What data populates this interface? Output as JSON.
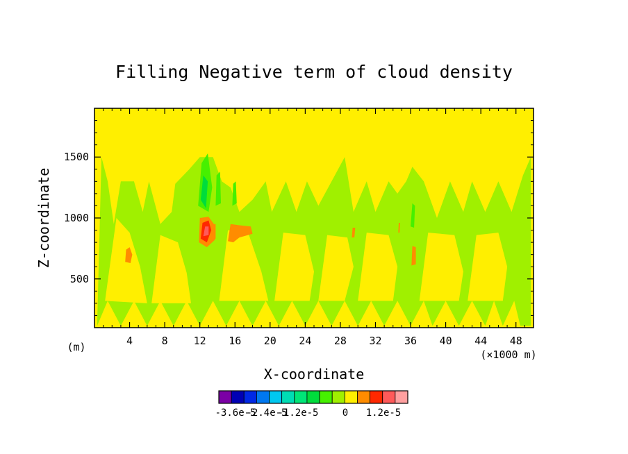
{
  "chart_data": {
    "type": "heatmap",
    "title": "Filling Negative term of cloud density",
    "xlabel": "X-coordinate",
    "ylabel": "Z-coordinate",
    "x_unit_left": "(m)",
    "x_unit_right": "(×1000 m)",
    "xlim": [
      0,
      50
    ],
    "ylim": [
      100,
      1900
    ],
    "x_ticks": [
      4,
      8,
      12,
      16,
      20,
      24,
      28,
      32,
      36,
      40,
      44,
      48
    ],
    "y_ticks": [
      500,
      1000,
      1500
    ],
    "background_color": "#ffef00",
    "colorbar": {
      "colors": [
        "#7b00a5",
        "#0000b4",
        "#0028e6",
        "#0078f0",
        "#00c8f0",
        "#00dcb4",
        "#00e678",
        "#00dc3c",
        "#46f000",
        "#a0f000",
        "#ffef00",
        "#ff8c00",
        "#ff2800",
        "#ff5a5a",
        "#ffa0a0"
      ],
      "labels": [
        "-3.6e-5",
        "-2.4e-5",
        "-1.2e-5",
        "0",
        "1.2e-5"
      ]
    },
    "regions": [
      {
        "level": "0 (light green)",
        "color": "#a0f000",
        "points": [
          [
            0.3,
            115
          ],
          [
            0.8,
            1500
          ],
          [
            1.5,
            1300
          ],
          [
            2.2,
            950
          ],
          [
            3,
            1300
          ],
          [
            4.5,
            1300
          ],
          [
            5.5,
            1050
          ],
          [
            6.2,
            1300
          ],
          [
            7.5,
            950
          ],
          [
            8.8,
            1050
          ],
          [
            9.2,
            1280
          ],
          [
            10.8,
            1400
          ],
          [
            12,
            1500
          ],
          [
            13.5,
            1500
          ],
          [
            14.5,
            1300
          ],
          [
            15.5,
            1250
          ],
          [
            16.5,
            1050
          ],
          [
            18,
            1150
          ],
          [
            19.5,
            1300
          ],
          [
            20.2,
            1050
          ],
          [
            21.8,
            1300
          ],
          [
            23,
            1050
          ],
          [
            24.2,
            1300
          ],
          [
            25.5,
            1100
          ],
          [
            27,
            1300
          ],
          [
            28.5,
            1500
          ],
          [
            29.5,
            1050
          ],
          [
            31,
            1300
          ],
          [
            32,
            1050
          ],
          [
            33.5,
            1300
          ],
          [
            34.5,
            1200
          ],
          [
            35.5,
            1300
          ],
          [
            36.2,
            1420
          ],
          [
            37.5,
            1300
          ],
          [
            39,
            1000
          ],
          [
            40.5,
            1300
          ],
          [
            42,
            1050
          ],
          [
            43,
            1300
          ],
          [
            44.5,
            1050
          ],
          [
            46,
            1300
          ],
          [
            47.5,
            1050
          ],
          [
            48.8,
            1350
          ],
          [
            49.7,
            1500
          ],
          [
            49.7,
            115
          ],
          [
            48.5,
            115
          ],
          [
            47.8,
            320
          ],
          [
            46.5,
            115
          ],
          [
            45.5,
            320
          ],
          [
            44.5,
            115
          ],
          [
            43,
            320
          ],
          [
            41.5,
            115
          ],
          [
            40,
            320
          ],
          [
            38.5,
            115
          ],
          [
            37.5,
            320
          ],
          [
            36,
            115
          ],
          [
            34.5,
            320
          ],
          [
            33,
            115
          ],
          [
            31.5,
            320
          ],
          [
            30,
            115
          ],
          [
            28.5,
            320
          ],
          [
            27,
            115
          ],
          [
            25.5,
            320
          ],
          [
            24,
            115
          ],
          [
            22.5,
            320
          ],
          [
            21,
            115
          ],
          [
            19.5,
            320
          ],
          [
            18,
            115
          ],
          [
            16.5,
            320
          ],
          [
            15,
            115
          ],
          [
            13.5,
            320
          ],
          [
            12,
            115
          ],
          [
            10.5,
            320
          ],
          [
            9,
            115
          ],
          [
            7.5,
            320
          ],
          [
            6,
            115
          ],
          [
            4.5,
            320
          ],
          [
            3,
            115
          ],
          [
            1.5,
            320
          ]
        ]
      },
      {
        "level": "0 (yellow)",
        "color": "#ffef00",
        "points": [
          [
            1.2,
            320
          ],
          [
            2.5,
            1000
          ],
          [
            4,
            880
          ],
          [
            5.2,
            600
          ],
          [
            6,
            300
          ]
        ]
      },
      {
        "level": "0 (yellow)",
        "color": "#ffef00",
        "points": [
          [
            6.5,
            300
          ],
          [
            7.5,
            860
          ],
          [
            9.5,
            800
          ],
          [
            10.5,
            550
          ],
          [
            11,
            300
          ]
        ]
      },
      {
        "level": "0 (yellow)",
        "color": "#ffef00",
        "points": [
          [
            14.2,
            320
          ],
          [
            15.2,
            900
          ],
          [
            17.5,
            880
          ],
          [
            19,
            560
          ],
          [
            19.8,
            320
          ]
        ]
      },
      {
        "level": "0 (yellow)",
        "color": "#ffef00",
        "points": [
          [
            20.5,
            320
          ],
          [
            21.5,
            880
          ],
          [
            24,
            860
          ],
          [
            25,
            560
          ],
          [
            24.5,
            320
          ]
        ]
      },
      {
        "level": "0 (yellow)",
        "color": "#ffef00",
        "points": [
          [
            25.5,
            320
          ],
          [
            26.5,
            860
          ],
          [
            28.8,
            840
          ],
          [
            29.5,
            600
          ],
          [
            28.5,
            320
          ]
        ]
      },
      {
        "level": "0 (yellow)",
        "color": "#ffef00",
        "points": [
          [
            30,
            320
          ],
          [
            31,
            880
          ],
          [
            33.5,
            860
          ],
          [
            34.5,
            600
          ],
          [
            34,
            320
          ]
        ]
      },
      {
        "level": "0 (yellow)",
        "color": "#ffef00",
        "points": [
          [
            37,
            320
          ],
          [
            38,
            880
          ],
          [
            41,
            860
          ],
          [
            42,
            560
          ],
          [
            41.5,
            320
          ]
        ]
      },
      {
        "level": "0 (yellow)",
        "color": "#ffef00",
        "points": [
          [
            42.5,
            320
          ],
          [
            43.5,
            860
          ],
          [
            46,
            880
          ],
          [
            47,
            600
          ],
          [
            46.5,
            320
          ]
        ]
      },
      {
        "level": "-1.2e-5",
        "color": "#46f000",
        "points": [
          [
            11.8,
            1100
          ],
          [
            12.2,
            1450
          ],
          [
            12.9,
            1530
          ],
          [
            13.4,
            1250
          ],
          [
            13,
            1050
          ]
        ]
      },
      {
        "level": "-1.8e-5",
        "color": "#00dc3c",
        "points": [
          [
            12.1,
            1150
          ],
          [
            12.4,
            1350
          ],
          [
            12.9,
            1300
          ],
          [
            12.7,
            1080
          ]
        ]
      },
      {
        "level": "-1.2e-5",
        "color": "#46f000",
        "points": [
          [
            13.8,
            1100
          ],
          [
            13.9,
            1350
          ],
          [
            14.3,
            1380
          ],
          [
            14.4,
            1120
          ]
        ]
      },
      {
        "level": "-1.2e-5",
        "color": "#46f000",
        "points": [
          [
            15.7,
            1100
          ],
          [
            15.8,
            1280
          ],
          [
            16.1,
            1300
          ],
          [
            16.2,
            1120
          ]
        ]
      },
      {
        "level": "-1.2e-5",
        "color": "#46f000",
        "points": [
          [
            36,
            930
          ],
          [
            36.2,
            1120
          ],
          [
            36.5,
            1100
          ],
          [
            36.4,
            920
          ]
        ]
      },
      {
        "level": "6e-6",
        "color": "#ff8c00",
        "points": [
          [
            11.9,
            800
          ],
          [
            12,
            1000
          ],
          [
            13,
            1010
          ],
          [
            13.6,
            950
          ],
          [
            13.7,
            820
          ],
          [
            12.8,
            760
          ]
        ]
      },
      {
        "level": "1.2e-5",
        "color": "#ff2800",
        "points": [
          [
            12.1,
            830
          ],
          [
            12.3,
            960
          ],
          [
            13,
            980
          ],
          [
            13.3,
            900
          ],
          [
            12.8,
            800
          ]
        ]
      },
      {
        "level": "1.8e-5",
        "color": "#ff5a5a",
        "points": [
          [
            12.4,
            850
          ],
          [
            12.6,
            930
          ],
          [
            13,
            930
          ],
          [
            13,
            860
          ]
        ]
      },
      {
        "level": "6e-6",
        "color": "#ff8c00",
        "points": [
          [
            13.3,
            820
          ],
          [
            13.4,
            950
          ],
          [
            13.8,
            950
          ],
          [
            13.8,
            830
          ]
        ]
      },
      {
        "level": "6e-6",
        "color": "#ff8c00",
        "points": [
          [
            15.2,
            810
          ],
          [
            15.5,
            950
          ],
          [
            16.5,
            940
          ],
          [
            17.8,
            930
          ],
          [
            18,
            870
          ],
          [
            16.5,
            840
          ],
          [
            15.8,
            800
          ]
        ]
      },
      {
        "level": "6e-6",
        "color": "#ff8c00",
        "points": [
          [
            3.5,
            640
          ],
          [
            3.6,
            740
          ],
          [
            4,
            760
          ],
          [
            4.3,
            700
          ],
          [
            4.1,
            630
          ]
        ]
      },
      {
        "level": "6e-6",
        "color": "#ff8c00",
        "points": [
          [
            36.1,
            610
          ],
          [
            36.2,
            770
          ],
          [
            36.6,
            760
          ],
          [
            36.6,
            620
          ]
        ]
      },
      {
        "level": "6e-6",
        "color": "#ff8c00",
        "points": [
          [
            29.3,
            840
          ],
          [
            29.4,
            920
          ],
          [
            29.7,
            920
          ],
          [
            29.6,
            840
          ]
        ]
      },
      {
        "level": "6e-6",
        "color": "#ff8c00",
        "points": [
          [
            34.6,
            880
          ],
          [
            34.65,
            960
          ],
          [
            34.8,
            960
          ],
          [
            34.75,
            880
          ]
        ]
      }
    ]
  }
}
